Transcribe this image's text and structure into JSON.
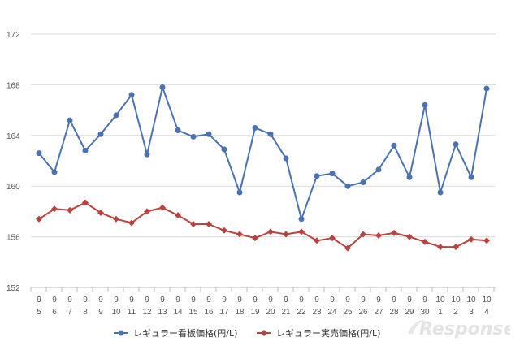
{
  "chart_data": {
    "type": "line",
    "categories": [
      [
        "9",
        "5"
      ],
      [
        "9",
        "6"
      ],
      [
        "9",
        "7"
      ],
      [
        "9",
        "8"
      ],
      [
        "9",
        "9"
      ],
      [
        "9",
        "10"
      ],
      [
        "9",
        "11"
      ],
      [
        "9",
        "12"
      ],
      [
        "9",
        "13"
      ],
      [
        "9",
        "14"
      ],
      [
        "9",
        "15"
      ],
      [
        "9",
        "16"
      ],
      [
        "9",
        "17"
      ],
      [
        "9",
        "18"
      ],
      [
        "9",
        "19"
      ],
      [
        "9",
        "20"
      ],
      [
        "9",
        "21"
      ],
      [
        "9",
        "22"
      ],
      [
        "9",
        "23"
      ],
      [
        "9",
        "24"
      ],
      [
        "9",
        "25"
      ],
      [
        "9",
        "26"
      ],
      [
        "9",
        "27"
      ],
      [
        "9",
        "28"
      ],
      [
        "9",
        "29"
      ],
      [
        "9",
        "30"
      ],
      [
        "10",
        "1"
      ],
      [
        "10",
        "2"
      ],
      [
        "10",
        "3"
      ],
      [
        "10",
        "4"
      ]
    ],
    "series": [
      {
        "name": "レギュラー看板価格(円/L)",
        "color": "#4a72b0",
        "marker": "circle",
        "values": [
          162.6,
          161.1,
          165.2,
          162.8,
          164.1,
          165.6,
          167.2,
          162.5,
          167.8,
          164.4,
          163.9,
          164.1,
          162.9,
          159.5,
          164.6,
          164.1,
          162.2,
          157.4,
          160.8,
          161.0,
          160.0,
          160.3,
          161.3,
          163.2,
          160.7,
          166.4,
          159.5,
          163.3,
          160.7,
          167.7
        ]
      },
      {
        "name": "レギュラー実売価格(円/L)",
        "color": "#b8433f",
        "marker": "diamond",
        "values": [
          157.4,
          158.2,
          158.1,
          158.7,
          157.9,
          157.4,
          157.1,
          158.0,
          158.3,
          157.7,
          157.0,
          157.0,
          156.5,
          156.2,
          155.9,
          156.4,
          156.2,
          156.4,
          155.7,
          155.9,
          155.1,
          156.2,
          156.1,
          156.3,
          156.0,
          155.6,
          155.2,
          155.2,
          155.8,
          155.7
        ]
      }
    ],
    "yticks": [
      "152",
      "156",
      "160",
      "164",
      "168",
      "172"
    ],
    "ylim": [
      152,
      172
    ],
    "grid": true,
    "legend_position": "bottom-center",
    "xlabel": "",
    "ylabel": "",
    "title": ""
  },
  "watermark": {
    "text": "Response."
  }
}
